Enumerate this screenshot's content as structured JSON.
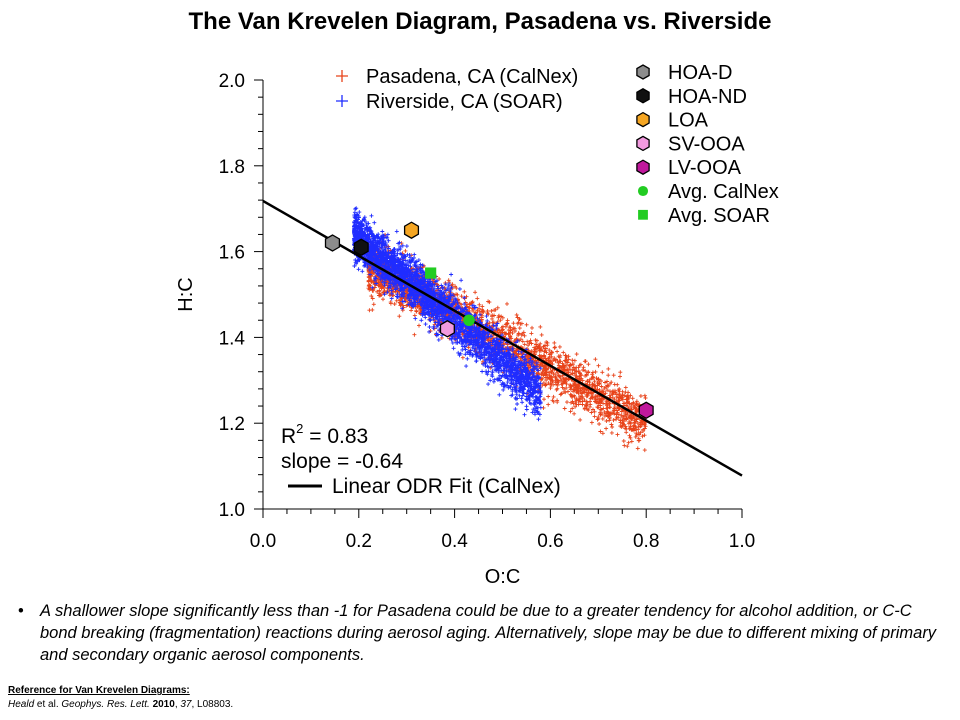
{
  "chart_data": {
    "type": "scatter",
    "title": "The Van Krevelen Diagram, Pasadena vs. Riverside",
    "xlabel": "O:C",
    "ylabel": "H:C",
    "xlim": [
      0.0,
      1.0
    ],
    "ylim": [
      1.0,
      2.0
    ],
    "x_ticks": [
      "0.0",
      "0.2",
      "0.4",
      "0.6",
      "0.8",
      "1.0"
    ],
    "y_ticks": [
      "1.0",
      "1.2",
      "1.4",
      "1.6",
      "1.8",
      "2.0"
    ],
    "grid": false,
    "series": [
      {
        "name": "Pasadena, CA (CalNex)",
        "marker": "plus",
        "color": "#e8431a",
        "cloud": {
          "x_range": [
            0.22,
            0.8
          ],
          "center_y_at_x0": 1.71,
          "slope": -0.64,
          "spread": 0.03
        }
      },
      {
        "name": "Riverside, CA (SOAR)",
        "marker": "plus",
        "color": "#1f2cff",
        "cloud": {
          "x_range": [
            0.19,
            0.58
          ],
          "center_y_at_x0": 1.82,
          "slope": -0.95,
          "spread": 0.028
        }
      }
    ],
    "reference_points": [
      {
        "name": "HOA-D",
        "marker": "hexagon",
        "color": "#8c8c8c",
        "x": 0.145,
        "y": 1.62
      },
      {
        "name": "HOA-ND",
        "marker": "hexagon",
        "color": "#111111",
        "x": 0.205,
        "y": 1.61
      },
      {
        "name": "LOA",
        "marker": "hexagon",
        "color": "#f5a623",
        "x": 0.31,
        "y": 1.65
      },
      {
        "name": "SV-OOA",
        "marker": "hexagon",
        "color": "#f29adf",
        "x": 0.385,
        "y": 1.42
      },
      {
        "name": "LV-OOA",
        "marker": "hexagon",
        "color": "#c0189c",
        "x": 0.8,
        "y": 1.23
      },
      {
        "name": "Avg. CalNex",
        "marker": "circle",
        "color": "#22cc22",
        "x": 0.43,
        "y": 1.44
      },
      {
        "name": "Avg. SOAR",
        "marker": "square",
        "color": "#22cc22",
        "x": 0.35,
        "y": 1.55
      }
    ],
    "fit_line": {
      "name": "Linear ODR Fit (CalNex)",
      "intercept": 1.718,
      "slope": -0.64,
      "x_range": [
        0.0,
        1.0
      ]
    },
    "annotations": {
      "r_squared_prefix": "R",
      "r_squared_sup": "2",
      "r_squared_value": " = 0.83",
      "slope_text": "slope = -0.64"
    }
  },
  "bullet_text": "A shallower slope significantly less than -1 for Pasadena could be due to a greater tendency for alcohol addition, or C-C bond breaking (fragmentation) reactions during aerosol aging.  Alternatively, slope may be due to different mixing of primary and secondary organic aerosol components.",
  "bullet_symbol": "•",
  "reference": {
    "heading": "Reference for Van Krevelen Diagrams:",
    "author": "Heald",
    "etal": " et al. ",
    "journal": "Geophys. Res. Lett.",
    "year": "2010",
    "volume": "37",
    "article": ", L08803."
  }
}
